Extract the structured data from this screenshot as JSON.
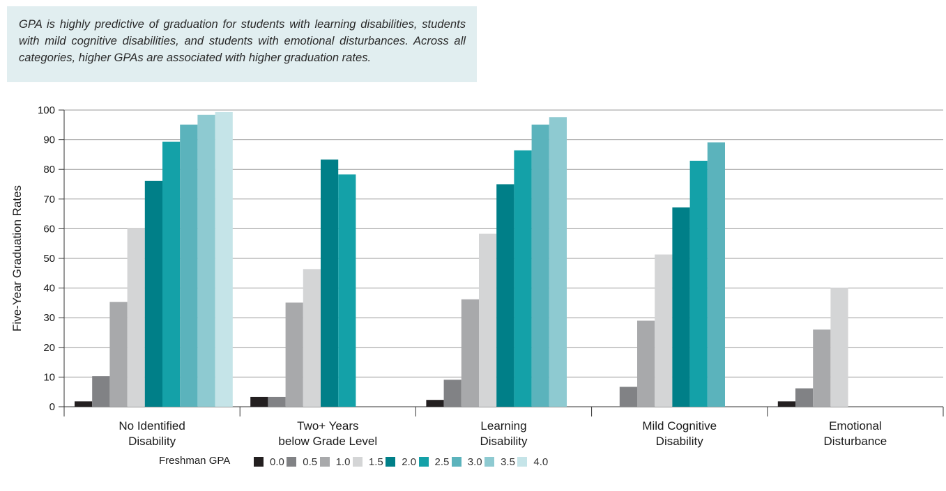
{
  "callout": {
    "text": "GPA is highly predictive of graduation for students with learning disabilities, students with mild cognitive disabilities, and students with emotional disturbances. Across all categories, higher GPAs are associated with higher graduation rates."
  },
  "chart_data": {
    "type": "bar",
    "ylabel": "Five-Year Graduation Rates",
    "ylim": [
      0,
      100
    ],
    "yticks": [
      0,
      10,
      20,
      30,
      40,
      50,
      60,
      70,
      80,
      90,
      100
    ],
    "grid": true,
    "legend_position": "bottom",
    "legend_title": "Freshman GPA",
    "categories": [
      [
        "No Identified",
        "Disability"
      ],
      [
        "Two+ Years",
        "below Grade Level"
      ],
      [
        "Learning",
        "Disability"
      ],
      [
        "Mild Cognitive",
        "Disability"
      ],
      [
        "Emotional",
        "Disturbance"
      ]
    ],
    "series": [
      {
        "name": "0.0",
        "color": "#231f20",
        "values": [
          1.8,
          3.3,
          2.3,
          null,
          1.8
        ]
      },
      {
        "name": "0.5",
        "color": "#818285",
        "values": [
          10.3,
          3.3,
          9.1,
          6.7,
          6.2
        ]
      },
      {
        "name": "1.0",
        "color": "#a8a9ab",
        "values": [
          35.3,
          35.1,
          36.2,
          29.0,
          26.0
        ]
      },
      {
        "name": "1.5",
        "color": "#d4d5d6",
        "values": [
          60.0,
          46.4,
          58.3,
          51.3,
          40.1
        ]
      },
      {
        "name": "2.0",
        "color": "#007f88",
        "values": [
          76.1,
          83.3,
          75.0,
          67.2,
          null
        ]
      },
      {
        "name": "2.5",
        "color": "#14a1a8",
        "values": [
          89.3,
          78.3,
          86.4,
          82.9,
          null
        ]
      },
      {
        "name": "3.0",
        "color": "#5bb3bc",
        "values": [
          95.1,
          null,
          95.1,
          89.1,
          null
        ]
      },
      {
        "name": "3.5",
        "color": "#8ecad1",
        "values": [
          98.4,
          null,
          97.6,
          null,
          null
        ]
      },
      {
        "name": "4.0",
        "color": "#c5e4e8",
        "values": [
          99.3,
          null,
          null,
          null,
          null
        ]
      }
    ]
  }
}
